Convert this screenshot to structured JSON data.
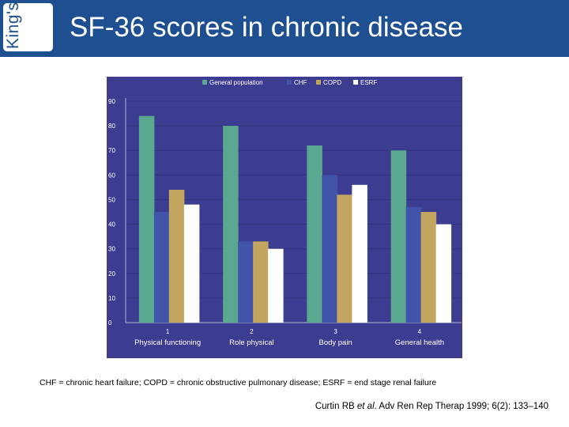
{
  "header": {
    "logo_text": "King's",
    "title": "SF-36 scores in chronic disease"
  },
  "colors": {
    "header_bg": "#1d4f91",
    "plot_bg": "#3c3c91",
    "grid": "#32327d",
    "axis": "#b4b4d2",
    "tick_text": "#ffffff",
    "category_text": "#ffffff"
  },
  "chart_data": {
    "type": "bar",
    "categories": [
      "Physical functioning",
      "Role physical",
      "Body pain",
      "General health"
    ],
    "category_numbers": [
      "1",
      "2",
      "3",
      "4"
    ],
    "series": [
      {
        "name": "General population",
        "color": "#5aa890",
        "values": [
          84,
          80,
          72,
          70
        ]
      },
      {
        "name": "CHF",
        "color": "#4154aa",
        "values": [
          45,
          33,
          60,
          47
        ]
      },
      {
        "name": "COPD",
        "color": "#c2a55e",
        "values": [
          54,
          33,
          52,
          45
        ]
      },
      {
        "name": "ESRF",
        "color": "#ffffff",
        "values": [
          48,
          30,
          56,
          40
        ]
      }
    ],
    "ylim": [
      0,
      90
    ],
    "yticks": [
      0,
      10,
      20,
      30,
      40,
      50,
      60,
      70,
      80,
      90
    ],
    "legend": "top",
    "title": "",
    "xlabel": "",
    "ylabel": ""
  },
  "footnote": "CHF = chronic heart failure; COPD = chronic obstructive pulmonary disease; ESRF = end stage renal failure",
  "citation": {
    "authors": "Curtin RB",
    "etal": "et al",
    "rest": ". Adv Ren Rep Therap 1999; 6(2): 133–140"
  }
}
